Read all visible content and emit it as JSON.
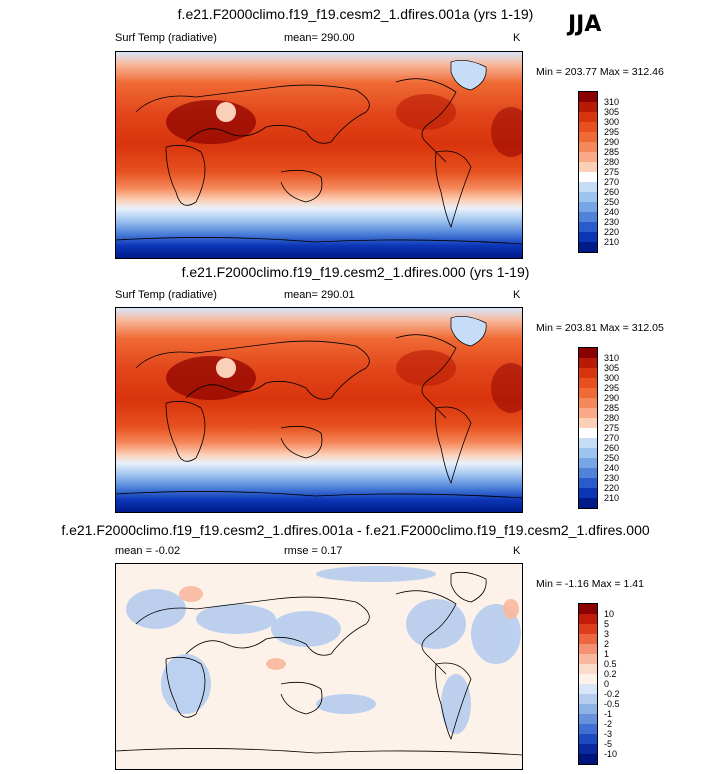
{
  "season": "JJA",
  "units": "K",
  "panels": [
    {
      "title": "f.e21.F2000climo.f19_f19.cesm2_1.dfires.001a (yrs 1-19)",
      "variable": "Surf Temp (radiative)",
      "mean": "mean= 290.00",
      "units": "K",
      "minmax": "Min = 203.77 Max = 312.46",
      "levels": [
        "310",
        "305",
        "300",
        "295",
        "290",
        "285",
        "280",
        "275",
        "270",
        "260",
        "250",
        "240",
        "230",
        "220",
        "210"
      ],
      "colors": [
        "#8b0000",
        "#b81a05",
        "#d9340d",
        "#e6501e",
        "#ef6a35",
        "#f5885a",
        "#f9a985",
        "#fcd0b8",
        "#ffffff",
        "#c6dcf7",
        "#9ec3ef",
        "#77a6e6",
        "#4f83da",
        "#2a5bcc",
        "#0c36b8",
        "#001a8a"
      ]
    },
    {
      "title": "f.e21.F2000climo.f19_f19.cesm2_1.dfires.000 (yrs 1-19)",
      "variable": "Surf Temp (radiative)",
      "mean": "mean= 290.01",
      "units": "K",
      "minmax": "Min = 203.81 Max = 312.05",
      "levels": [
        "310",
        "305",
        "300",
        "295",
        "290",
        "285",
        "280",
        "275",
        "270",
        "260",
        "250",
        "240",
        "230",
        "220",
        "210"
      ],
      "colors": [
        "#8b0000",
        "#b81a05",
        "#d9340d",
        "#e6501e",
        "#ef6a35",
        "#f5885a",
        "#f9a985",
        "#fcd0b8",
        "#ffffff",
        "#c6dcf7",
        "#9ec3ef",
        "#77a6e6",
        "#4f83da",
        "#2a5bcc",
        "#0c36b8",
        "#001a8a"
      ]
    },
    {
      "title": "f.e21.F2000climo.f19_f19.cesm2_1.dfires.001a - f.e21.F2000climo.f19_f19.cesm2_1.dfires.000",
      "mean": "mean =  -0.02",
      "rmse": "rmse =   0.17",
      "units": "K",
      "minmax": "Min =  -1.16 Max =   1.41",
      "levels": [
        "10",
        "5",
        "3",
        "2",
        "1",
        "0.5",
        "0.2",
        "0",
        "-0.2",
        "-0.5",
        "-1",
        "-2",
        "-3",
        "-5",
        "-10"
      ],
      "colors": [
        "#8b0000",
        "#c21a0b",
        "#de3c1a",
        "#ec6642",
        "#f39170",
        "#f8b89e",
        "#fbdccc",
        "#fdf2e9",
        "#d9e6f7",
        "#b5cdef",
        "#8fb2e6",
        "#6692dc",
        "#3f6fd0",
        "#1c4bc0",
        "#0a2aa0",
        "#00137a"
      ]
    }
  ]
}
